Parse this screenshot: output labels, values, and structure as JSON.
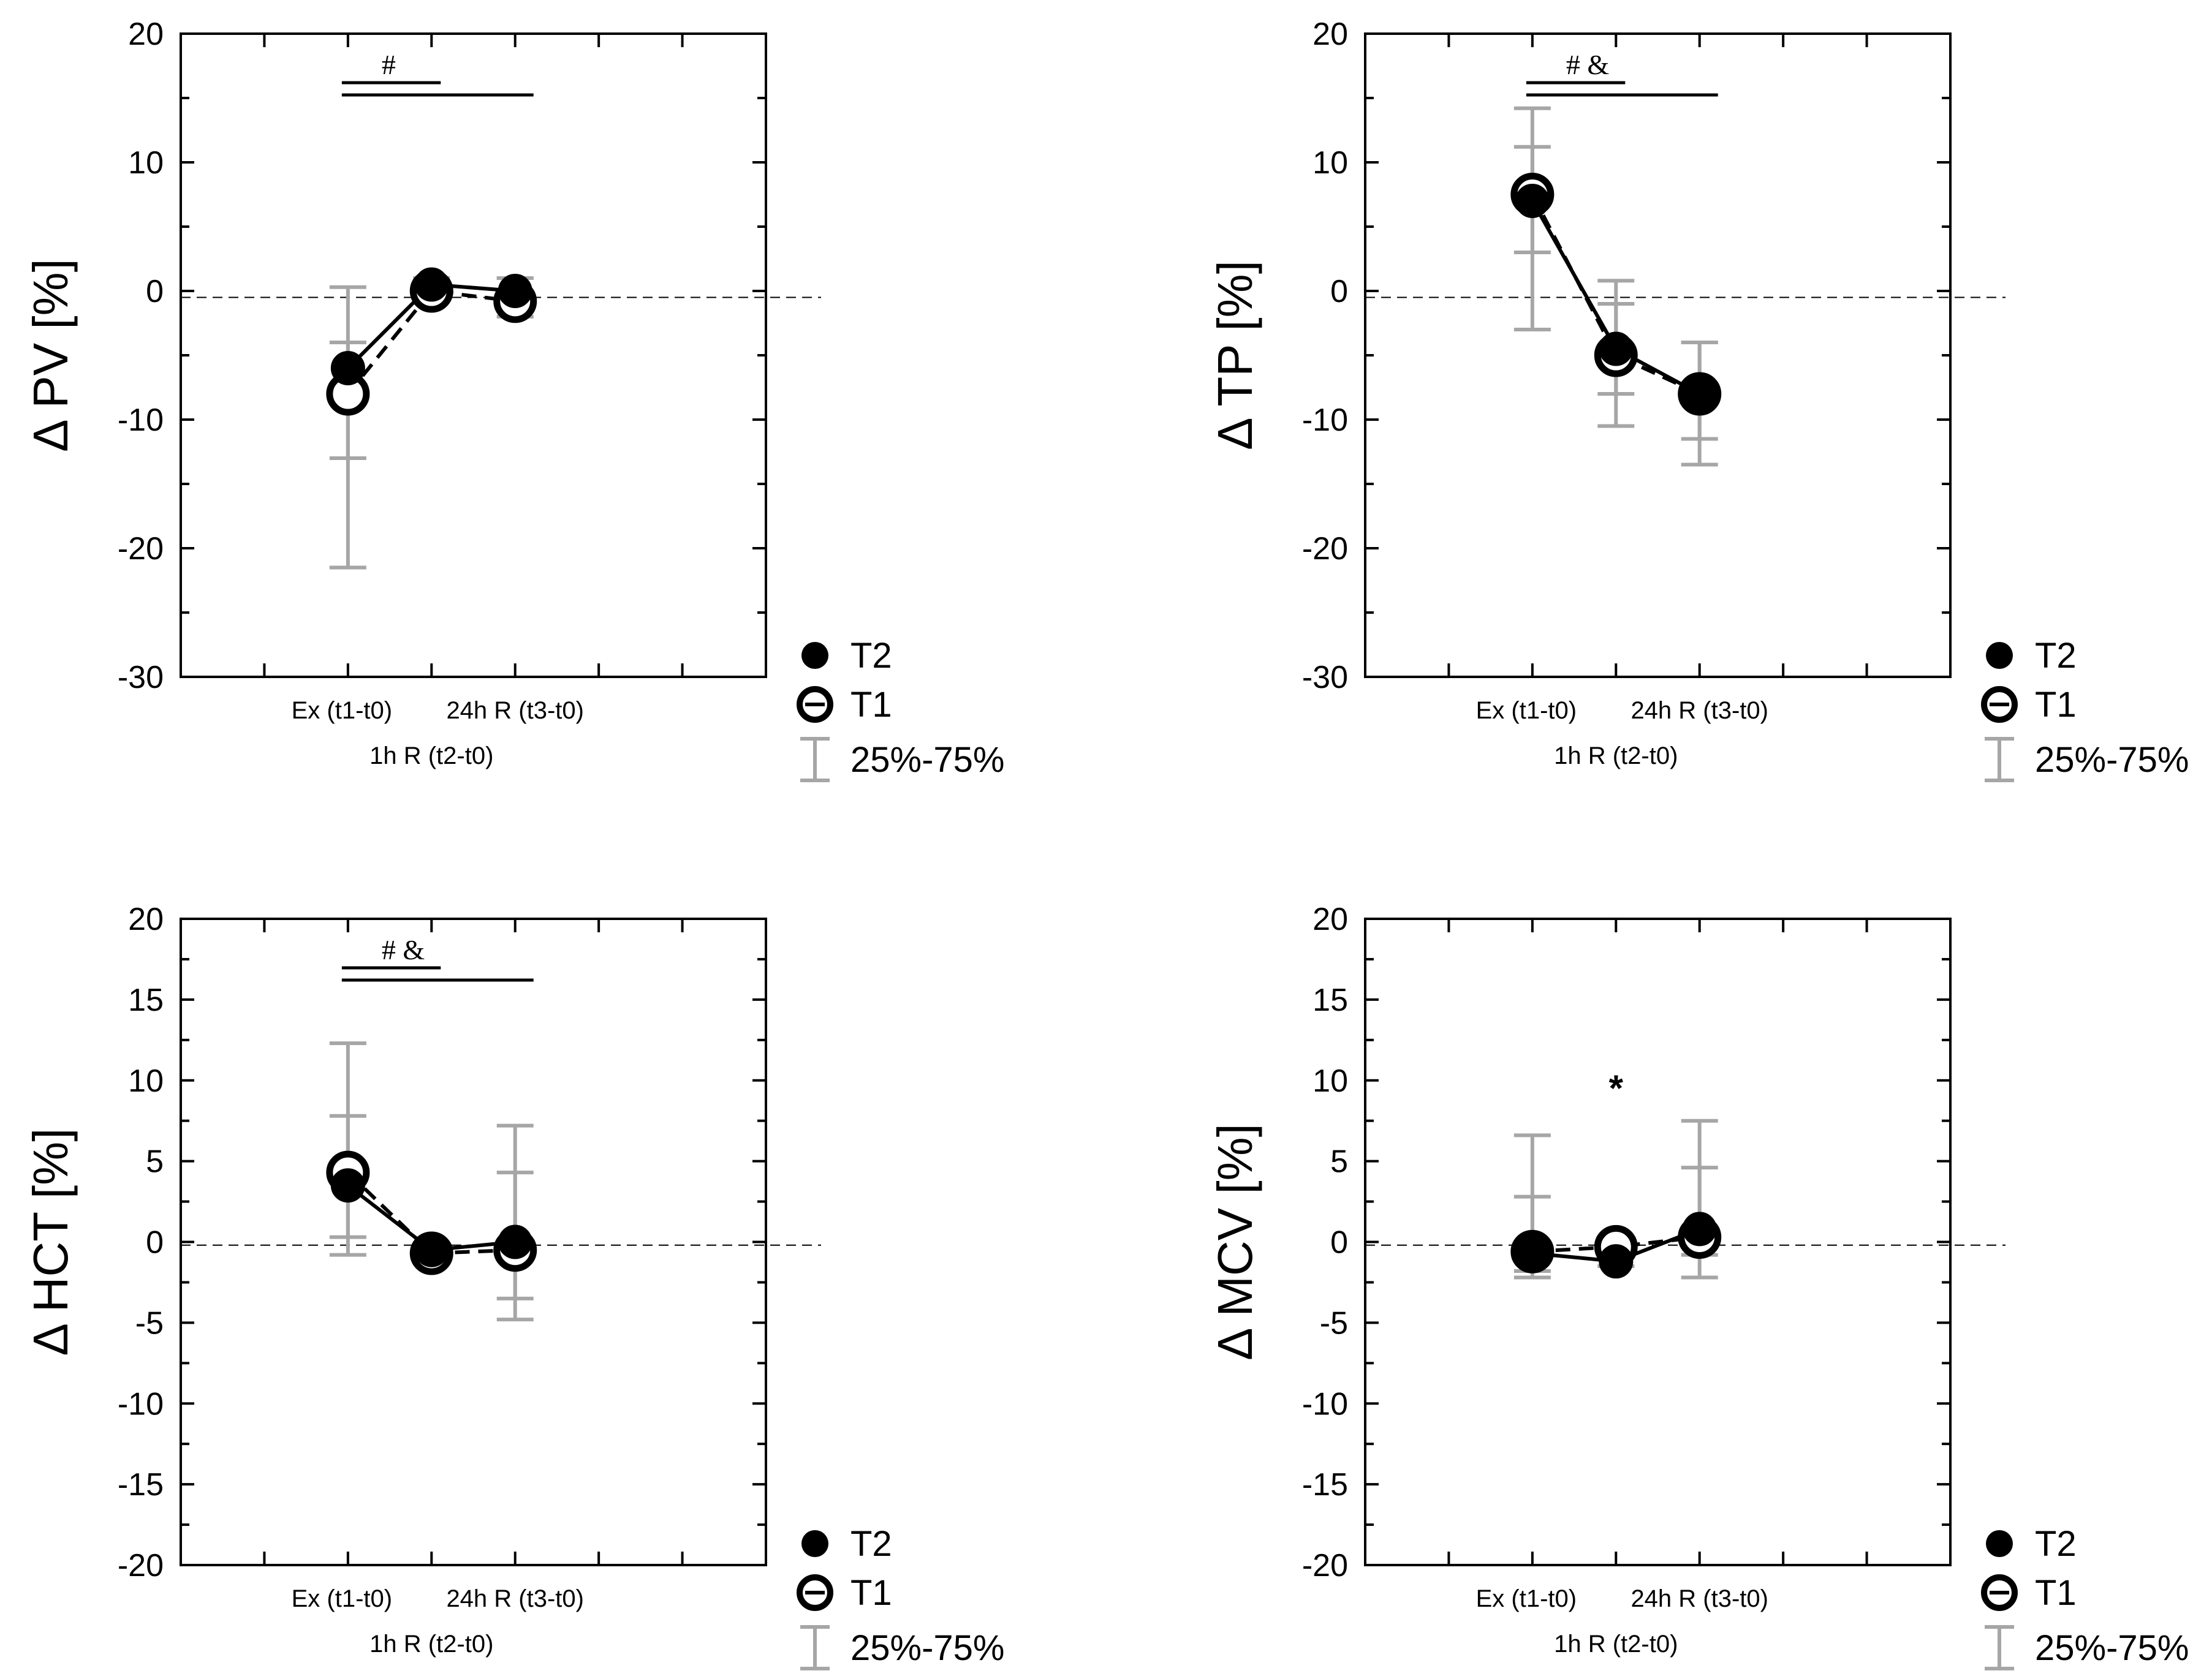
{
  "legend": {
    "t2_label": "T2",
    "t1_label": "T1",
    "range_label": "25%-75%"
  },
  "colors": {
    "axis": "#000000",
    "error_bar": "#a6a6a6",
    "reference_line": "#000000"
  },
  "chart_data": [
    {
      "id": "pv",
      "type": "line",
      "ylabel": "Δ PV [%]",
      "ylim": [
        -30,
        20
      ],
      "yticks": [
        20,
        10,
        0,
        -10,
        -20,
        -30
      ],
      "categories": [
        "Ex (t1-t0)",
        "1h R (t2-t0)",
        "24h R (t3-t0)"
      ],
      "xlabels": {
        "row1_left": "Ex (t1-t0)",
        "row1_right": "24h R (t3-t0)",
        "row2": "1h R (t2-t0)"
      },
      "series": [
        {
          "name": "T2",
          "values": [
            -6,
            0.5,
            0
          ],
          "q25": [
            -13,
            0,
            -1
          ],
          "q75": [
            -4,
            1,
            1
          ]
        },
        {
          "name": "T1",
          "values": [
            -8,
            0,
            -0.8
          ],
          "q25": [
            -21.5,
            -0.5,
            -2
          ],
          "q75": [
            0.3,
            0.8,
            1
          ]
        }
      ],
      "reference_line": -0.5,
      "significance": [
        {
          "label": "#",
          "span": "Ex to 1h R"
        },
        {
          "label": "",
          "span": "Ex to 24h R"
        }
      ],
      "annotations": []
    },
    {
      "id": "tp",
      "type": "line",
      "ylabel": "Δ TP [%]",
      "ylim": [
        -30,
        20
      ],
      "yticks": [
        20,
        10,
        0,
        -10,
        -20,
        -30
      ],
      "categories": [
        "Ex (t1-t0)",
        "1h R (t2-t0)",
        "24h R (t3-t0)"
      ],
      "xlabels": {
        "row1_left": "Ex (t1-t0)",
        "row1_right": "24h R (t3-t0)",
        "row2": "1h R (t2-t0)"
      },
      "series": [
        {
          "name": "T2",
          "values": [
            7,
            -4.5,
            -8
          ],
          "q25": [
            3,
            -8,
            -11.5
          ],
          "q75": [
            11.2,
            -1,
            -4
          ]
        },
        {
          "name": "T1",
          "values": [
            7.5,
            -5,
            -8
          ],
          "q25": [
            -3,
            -10.5,
            -13.5
          ],
          "q75": [
            14.2,
            0.8,
            -4
          ]
        }
      ],
      "reference_line": -0.5,
      "significance": [
        {
          "label": "#  &",
          "span": "Ex to 1h R"
        },
        {
          "label": "",
          "span": "Ex to 24h R"
        }
      ],
      "annotations": []
    },
    {
      "id": "hct",
      "type": "line",
      "ylabel": "Δ HCT [%]",
      "ylim": [
        -20,
        20
      ],
      "yticks": [
        20,
        15,
        10,
        5,
        0,
        -5,
        -10,
        -15,
        -20
      ],
      "categories": [
        "Ex (t1-t0)",
        "1h R (t2-t0)",
        "24h R (t3-t0)"
      ],
      "xlabels": {
        "row1_left": "Ex (t1-t0)",
        "row1_right": "24h R (t3-t0)",
        "row2": "1h R (t2-t0)"
      },
      "series": [
        {
          "name": "T2",
          "values": [
            3.5,
            -0.5,
            0
          ],
          "q25": [
            0.3,
            -0.8,
            -3.5
          ],
          "q75": [
            7.8,
            -0.2,
            4.3
          ]
        },
        {
          "name": "T1",
          "values": [
            4.3,
            -0.7,
            -0.5
          ],
          "q25": [
            -0.8,
            -1,
            -4.8
          ],
          "q75": [
            12.3,
            -0.4,
            7.2
          ]
        }
      ],
      "reference_line": -0.2,
      "significance": [
        {
          "label": "# &",
          "span": "Ex to 1h R"
        },
        {
          "label": "",
          "span": "Ex to 24h R"
        }
      ],
      "annotations": []
    },
    {
      "id": "mcv",
      "type": "line",
      "ylabel": "Δ MCV [%]",
      "ylim": [
        -20,
        20
      ],
      "yticks": [
        20,
        15,
        10,
        5,
        0,
        -5,
        -10,
        -15,
        -20
      ],
      "categories": [
        "Ex (t1-t0)",
        "1h R (t2-t0)",
        "24h R (t3-t0)"
      ],
      "xlabels": {
        "row1_left": "Ex (t1-t0)",
        "row1_right": "24h R (t3-t0)",
        "row2": "1h R (t2-t0)"
      },
      "series": [
        {
          "name": "T2",
          "values": [
            -0.7,
            -1.2,
            0.8
          ],
          "q25": [
            -1.8,
            -1.5,
            -0.8
          ],
          "q75": [
            2.8,
            -0.8,
            4.6
          ]
        },
        {
          "name": "T1",
          "values": [
            -0.6,
            -0.3,
            0.3
          ],
          "q25": [
            -2.2,
            -0.6,
            -2.2
          ],
          "q75": [
            6.6,
            -0.1,
            7.5
          ]
        }
      ],
      "reference_line": -0.2,
      "significance": [],
      "annotations": [
        {
          "label": "*",
          "category_index": 1,
          "y": 9.5
        }
      ]
    }
  ]
}
